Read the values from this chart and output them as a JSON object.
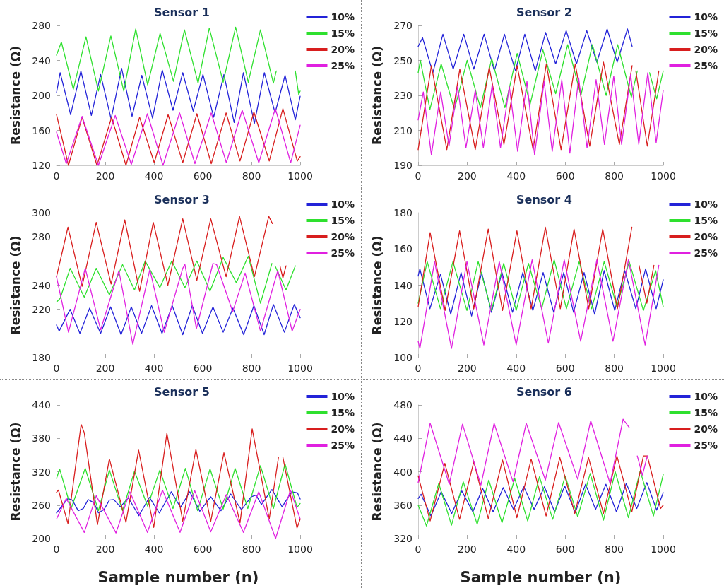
{
  "chart_data": [
    {
      "type": "line",
      "title": "Sensor 1",
      "ylabel": "Resistance (Ω)",
      "xlim": [
        0,
        1000
      ],
      "xticks": [
        0,
        200,
        400,
        600,
        800,
        1000
      ],
      "ylim": [
        120,
        280
      ],
      "yticks": [
        120,
        160,
        200,
        240,
        280
      ],
      "legend": "right",
      "marker": "none",
      "series": [
        {
          "name": "10%",
          "color": "#2323d8",
          "x": [
            0,
            15,
            58,
            100,
            143,
            181,
            224,
            267,
            310,
            350,
            394,
            434,
            478,
            518,
            561,
            601,
            645,
            687,
            729,
            767,
            812,
            853,
            897,
            938,
            980,
            1000
          ],
          "values": [
            203,
            226,
            178,
            228,
            177,
            224,
            173,
            231,
            176,
            223,
            174,
            229,
            183,
            226,
            182,
            224,
            175,
            224,
            169,
            226,
            168,
            226,
            180,
            223,
            172,
            199
          ]
        },
        {
          "name": "15%",
          "color": "#2ee02e",
          "x": [
            0,
            20,
            69,
            121,
            172,
            223,
            276,
            325,
            374,
            425,
            480,
            525,
            581,
            627,
            684,
            735,
            787,
            837,
            890,
            902,
            940,
            980,
            994,
            1000
          ],
          "values": [
            246,
            261,
            207,
            267,
            205,
            268,
            205,
            276,
            212,
            271,
            216,
            275,
            214,
            277,
            215,
            278,
            215,
            275,
            214,
            228,
            null,
            228,
            201,
            205
          ]
        },
        {
          "name": "20%",
          "color": "#d81e1e",
          "x": [
            0,
            49,
            105,
            166,
            226,
            285,
            341,
            401,
            458,
            518,
            576,
            635,
            696,
            753,
            810,
            873,
            929,
            988,
            1000
          ],
          "values": [
            178,
            120,
            175,
            120,
            175,
            120,
            175,
            123,
            178,
            123,
            179,
            122,
            180,
            125,
            181,
            125,
            185,
            125,
            130
          ]
        },
        {
          "name": "25%",
          "color": "#e020e0",
          "x": [
            0,
            40,
            105,
            172,
            241,
            307,
            373,
            437,
            505,
            568,
            635,
            697,
            762,
            830,
            898,
            961,
            1000
          ],
          "values": [
            158,
            122,
            176,
            120,
            177,
            121,
            179,
            120,
            180,
            122,
            180,
            123,
            183,
            123,
            185,
            123,
            166
          ]
        }
      ]
    },
    {
      "type": "line",
      "title": "Sensor 2",
      "ylabel": "Resistance (Ω)",
      "xlim": [
        0,
        1000
      ],
      "xticks": [
        0,
        200,
        400,
        600,
        800,
        1000
      ],
      "ylim": [
        190,
        270
      ],
      "yticks": [
        190,
        210,
        230,
        250,
        270
      ],
      "legend": "right",
      "marker": "none",
      "series": [
        {
          "name": "10%",
          "color": "#2323d8",
          "x": [
            0,
            18,
            60,
            101,
            143,
            186,
            227,
            269,
            311,
            352,
            397,
            435,
            478,
            520,
            561,
            604,
            646,
            688,
            729,
            771,
            812,
            854,
            873
          ],
          "values": [
            258,
            263,
            243,
            265,
            245,
            265,
            245,
            265,
            244,
            265,
            244,
            265,
            244,
            266,
            248,
            267,
            248,
            267,
            249,
            268,
            249,
            268,
            258
          ]
        },
        {
          "name": "15%",
          "color": "#2ee02e",
          "x": [
            0,
            9,
            48,
            94,
            148,
            200,
            254,
            300,
            354,
            404,
            457,
            509,
            561,
            610,
            664,
            711,
            767,
            814,
            870,
            894,
            920,
            944,
            973,
            1000
          ],
          "values": [
            243,
            250,
            222,
            248,
            222,
            250,
            223,
            251,
            223,
            254,
            225,
            256,
            231,
            259,
            230,
            259,
            230,
            259,
            229,
            244,
            null,
            243,
            228,
            244
          ]
        },
        {
          "name": "20%",
          "color": "#d81e1e",
          "x": [
            0,
            54,
            117,
            170,
            233,
            290,
            350,
            404,
            469,
            523,
            583,
            641,
            700,
            756,
            821,
            873,
            880,
            888,
            935,
            982
          ],
          "values": [
            199,
            247,
            199,
            245,
            199,
            246,
            202,
            247,
            199,
            248,
            199,
            248,
            201,
            249,
            202,
            247,
            null,
            244,
            201,
            244
          ]
        },
        {
          "name": "25%",
          "color": "#e020e0",
          "x": [
            0,
            21,
            54,
            92,
            126,
            161,
            195,
            233,
            266,
            302,
            336,
            372,
            406,
            444,
            475,
            514,
            547,
            586,
            619,
            655,
            689,
            726,
            760,
            798,
            830,
            867,
            900,
            937,
            971,
            1000
          ],
          "values": [
            216,
            232,
            196,
            232,
            201,
            235,
            200,
            233,
            200,
            236,
            200,
            235,
            198,
            238,
            196,
            238,
            198,
            239,
            197,
            240,
            200,
            239,
            202,
            241,
            202,
            242,
            202,
            243,
            203,
            233
          ]
        }
      ]
    },
    {
      "type": "line",
      "title": "Sensor 3",
      "ylabel": "Resistance (Ω)",
      "xlim": [
        0,
        1000
      ],
      "xticks": [
        0,
        200,
        400,
        600,
        800,
        1000
      ],
      "ylim": [
        180,
        300
      ],
      "yticks": [
        180,
        220,
        240,
        280,
        300
      ],
      "legend": "right",
      "marker": "none",
      "series": [
        {
          "name": "10%",
          "color": "#2323d8",
          "x": [
            0,
            11,
            56,
            96,
            136,
            181,
            222,
            265,
            307,
            349,
            390,
            433,
            475,
            518,
            557,
            599,
            642,
            684,
            724,
            768,
            810,
            852,
            890,
            935,
            976,
            1000
          ],
          "values": [
            207,
            202,
            220,
            200,
            221,
            200,
            222,
            199,
            222,
            200,
            223,
            200,
            223,
            199,
            223,
            200,
            222,
            201,
            221,
            199,
            223,
            199,
            224,
            201,
            224,
            213
          ]
        },
        {
          "name": "15%",
          "color": "#2ee02e",
          "x": [
            0,
            15,
            56,
            114,
            163,
            217,
            271,
            320,
            364,
            424,
            473,
            527,
            576,
            630,
            684,
            738,
            787,
            837,
            884,
            890,
            897,
            942,
            980
          ],
          "values": [
            226,
            229,
            254,
            230,
            254,
            232,
            257,
            236,
            260,
            238,
            260,
            238,
            260,
            235,
            263,
            242,
            264,
            225,
            258,
            null,
            256,
            236,
            256
          ]
        },
        {
          "name": "20%",
          "color": "#d81e1e",
          "x": [
            0,
            47,
            105,
            163,
            224,
            280,
            341,
            397,
            457,
            518,
            576,
            633,
            696,
            751,
            812,
            871,
            886,
            900,
            917,
            929,
            942
          ],
          "values": [
            247,
            288,
            239,
            292,
            241,
            294,
            235,
            292,
            240,
            295,
            244,
            295,
            247,
            297,
            247,
            297,
            291,
            null,
            256,
            246,
            256
          ]
        },
        {
          "name": "25%",
          "color": "#e020e0",
          "x": [
            0,
            49,
            118,
            181,
            256,
            313,
            383,
            442,
            518,
            527,
            574,
            642,
            657,
            723,
            774,
            837,
            908,
            967,
            1000
          ],
          "values": [
            247,
            201,
            254,
            203,
            252,
            191,
            253,
            201,
            254,
            257,
            204,
            258,
            257,
            218,
            250,
            202,
            252,
            202,
            220
          ]
        }
      ]
    },
    {
      "type": "line",
      "title": "Sensor 4",
      "ylabel": "Resistance (Ω)",
      "xlim": [
        0,
        1000
      ],
      "xticks": [
        0,
        200,
        400,
        600,
        800,
        1000
      ],
      "ylim": [
        100,
        180
      ],
      "yticks": [
        100,
        120,
        140,
        160,
        180
      ],
      "legend": "right",
      "marker": "none",
      "series": [
        {
          "name": "10%",
          "color": "#2323d8",
          "x": [
            0,
            7,
            48,
            91,
            133,
            175,
            218,
            259,
            299,
            342,
            385,
            427,
            468,
            510,
            553,
            594,
            634,
            677,
            720,
            759,
            802,
            843,
            888,
            928,
            971,
            1000
          ],
          "values": [
            145,
            149,
            127,
            146,
            124,
            147,
            123,
            147,
            125,
            147,
            125,
            147,
            126,
            147,
            125,
            147,
            125,
            147,
            124,
            148,
            126,
            148,
            127,
            149,
            127,
            143
          ]
        },
        {
          "name": "15%",
          "color": "#2ee02e",
          "x": [
            0,
            37,
            91,
            142,
            199,
            245,
            299,
            349,
            400,
            450,
            504,
            555,
            605,
            657,
            708,
            759,
            811,
            861,
            919,
            969,
            1000
          ],
          "values": [
            130,
            153,
            127,
            153,
            126,
            153,
            126,
            152,
            126,
            152,
            127,
            154,
            127,
            153,
            127,
            153,
            128,
            153,
            126,
            148,
            128
          ]
        },
        {
          "name": "20%",
          "color": "#d81e1e",
          "x": [
            0,
            49,
            110,
            169,
            227,
            286,
            344,
            403,
            461,
            519,
            580,
            636,
            696,
            753,
            813,
            872,
            885,
            901,
            933,
            962
          ],
          "values": [
            128,
            169,
            126,
            170,
            127,
            171,
            126,
            170,
            127,
            172,
            127,
            171,
            127,
            171,
            127,
            172,
            null,
            151,
            130,
            151
          ]
        },
        {
          "name": "25%",
          "color": "#e020e0",
          "x": [
            0,
            7,
            67,
            136,
            199,
            268,
            331,
            400,
            465,
            531,
            596,
            663,
            729,
            795,
            858,
            926,
            982
          ],
          "values": [
            109,
            105,
            153,
            105,
            153,
            107,
            153,
            107,
            154,
            108,
            154,
            109,
            154,
            109,
            154,
            107,
            151
          ]
        }
      ]
    },
    {
      "type": "line",
      "title": "Sensor 5",
      "ylabel": "Resistance (Ω)",
      "xlabel": "Sample number (n)",
      "xlim": [
        0,
        1000
      ],
      "xticks": [
        0,
        200,
        400,
        600,
        800,
        1000
      ],
      "ylim": [
        200,
        440
      ],
      "yticks": [
        200,
        260,
        320,
        380,
        440
      ],
      "legend": "right",
      "marker": "none",
      "series": [
        {
          "name": "10%",
          "color": "#2323d8",
          "x": [
            0,
            47,
            65,
            89,
            110,
            130,
            154,
            172,
            195,
            217,
            235,
            262,
            295,
            338,
            381,
            422,
            471,
            509,
            547,
            588,
            633,
            675,
            715,
            759,
            799,
            819,
            841,
            884,
            926,
            965,
            989,
            1000
          ],
          "values": [
            246,
            272,
            269,
            250,
            254,
            270,
            264,
            246,
            252,
            269,
            270,
            257,
            273,
            241,
            274,
            246,
            284,
            256,
            284,
            249,
            275,
            250,
            280,
            252,
            275,
            278,
            261,
            288,
            257,
            284,
            282,
            271
          ]
        },
        {
          "name": "15%",
          "color": "#2ee02e",
          "x": [
            0,
            13,
            60,
            118,
            172,
            217,
            271,
            320,
            374,
            424,
            478,
            529,
            579,
            630,
            684,
            733,
            785,
            837,
            890,
            938,
            987,
            1000
          ],
          "values": [
            308,
            325,
            254,
            326,
            250,
            323,
            250,
            321,
            258,
            323,
            254,
            326,
            250,
            325,
            253,
            326,
            254,
            331,
            254,
            334,
            256,
            263
          ]
        },
        {
          "name": "20%",
          "color": "#d81e1e",
          "x": [
            0,
            8,
            47,
            101,
            114,
            168,
            217,
            285,
            337,
            399,
            453,
            518,
            572,
            633,
            687,
            753,
            803,
            873,
            911,
            920,
            929,
            987,
            1000
          ],
          "values": [
            283,
            287,
            227,
            405,
            390,
            225,
            343,
            229,
            359,
            220,
            389,
            231,
            360,
            231,
            354,
            228,
            397,
            235,
            346,
            null,
            346,
            219,
            235
          ]
        },
        {
          "name": "25%",
          "color": "#e020e0",
          "x": [
            0,
            40,
            114,
            163,
            244,
            301,
            373,
            435,
            507,
            567,
            633,
            697,
            767,
            830,
            899,
            960,
            1000
          ],
          "values": [
            235,
            272,
            211,
            277,
            210,
            284,
            211,
            287,
            211,
            286,
            212,
            279,
            211,
            284,
            200,
            287,
            235
          ]
        }
      ]
    },
    {
      "type": "line",
      "title": "Sensor 6",
      "ylabel": "Resistance (Ω)",
      "xlabel": "Sample number (n)",
      "xlim": [
        0,
        1000
      ],
      "xticks": [
        0,
        200,
        400,
        600,
        800,
        1000
      ],
      "ylim": [
        320,
        480
      ],
      "yticks": [
        320,
        360,
        400,
        440,
        480
      ],
      "legend": "right",
      "marker": "none",
      "series": [
        {
          "name": "10%",
          "color": "#2323d8",
          "x": [
            0,
            12,
            52,
            94,
            137,
            178,
            223,
            263,
            306,
            347,
            389,
            431,
            473,
            515,
            557,
            598,
            641,
            683,
            724,
            766,
            809,
            849,
            892,
            933,
            973,
            1000
          ],
          "values": [
            368,
            373,
            347,
            376,
            350,
            377,
            352,
            380,
            352,
            381,
            355,
            382,
            355,
            382,
            352,
            383,
            351,
            385,
            355,
            385,
            352,
            386,
            356,
            387,
            354,
            375
          ]
        },
        {
          "name": "15%",
          "color": "#2ee02e",
          "x": [
            0,
            34,
            84,
            136,
            184,
            241,
            288,
            342,
            394,
            447,
            495,
            549,
            600,
            651,
            702,
            756,
            804,
            858,
            906,
            960,
            1000
          ],
          "values": [
            360,
            335,
            386,
            336,
            388,
            337,
            390,
            339,
            392,
            341,
            394,
            343,
            395,
            346,
            398,
            342,
            400,
            345,
            401,
            347,
            397
          ]
        },
        {
          "name": "20%",
          "color": "#d81e1e",
          "x": [
            0,
            49,
            109,
            169,
            227,
            286,
            344,
            403,
            461,
            522,
            578,
            639,
            695,
            756,
            811,
            872,
            919,
            935,
            989,
            1000
          ],
          "values": [
            395,
            341,
            410,
            343,
            412,
            344,
            414,
            345,
            415,
            347,
            417,
            350,
            417,
            350,
            419,
            352,
            419,
            419,
            356,
            360
          ]
        },
        {
          "name": "25%",
          "color": "#e020e0",
          "x": [
            0,
            49,
            127,
            181,
            256,
            310,
            387,
            441,
            519,
            573,
            651,
            704,
            783,
            836,
            861,
            880,
            894,
            915,
            935
          ],
          "values": [
            387,
            458,
            385,
            457,
            384,
            458,
            388,
            458,
            390,
            459,
            391,
            461,
            386,
            463,
            453,
            null,
            419,
            396,
            419
          ]
        }
      ]
    }
  ]
}
